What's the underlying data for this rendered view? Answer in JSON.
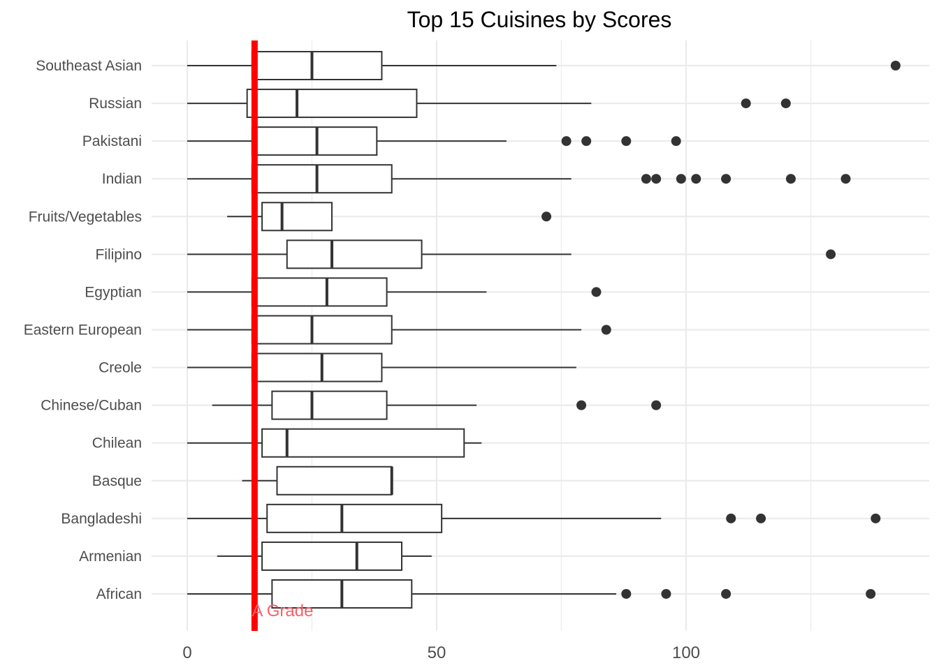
{
  "chart_data": {
    "type": "boxplot",
    "orientation": "horizontal",
    "title": "Top 15 Cuisines by Scores",
    "xlabel": "",
    "ylabel": "",
    "xlim": [
      0,
      150
    ],
    "x_ticks": [
      0,
      50,
      100
    ],
    "grid": true,
    "categories": [
      "Southeast Asian",
      "Russian",
      "Pakistani",
      "Indian",
      "Fruits/Vegetables",
      "Filipino",
      "Egyptian",
      "Eastern European",
      "Creole",
      "Chinese/Cuban",
      "Chilean",
      "Basque",
      "Bangladeshi",
      "Armenian",
      "African"
    ],
    "boxes": [
      {
        "category": "Southeast Asian",
        "whisker_low": 0,
        "q1": 13,
        "median": 25,
        "q3": 39,
        "whisker_high": 74,
        "outliers": [
          142
        ]
      },
      {
        "category": "Russian",
        "whisker_low": 0,
        "q1": 12,
        "median": 22,
        "q3": 46,
        "whisker_high": 81,
        "outliers": [
          112,
          120
        ]
      },
      {
        "category": "Pakistani",
        "whisker_low": 0,
        "q1": 13,
        "median": 26,
        "q3": 38,
        "whisker_high": 64,
        "outliers": [
          76,
          80,
          88,
          98
        ]
      },
      {
        "category": "Indian",
        "whisker_low": 0,
        "q1": 13,
        "median": 26,
        "q3": 41,
        "whisker_high": 77,
        "outliers": [
          92,
          94,
          99,
          102,
          108,
          121,
          132
        ]
      },
      {
        "category": "Fruits/Vegetables",
        "whisker_low": 8,
        "q1": 15,
        "median": 19,
        "q3": 29,
        "whisker_high": 29,
        "outliers": [
          72
        ]
      },
      {
        "category": "Filipino",
        "whisker_low": 0,
        "q1": 20,
        "median": 29,
        "q3": 47,
        "whisker_high": 77,
        "outliers": [
          129
        ]
      },
      {
        "category": "Egyptian",
        "whisker_low": 0,
        "q1": 13,
        "median": 28,
        "q3": 40,
        "whisker_high": 60,
        "outliers": [
          82
        ]
      },
      {
        "category": "Eastern European",
        "whisker_low": 0,
        "q1": 13,
        "median": 25,
        "q3": 41,
        "whisker_high": 79,
        "outliers": [
          84
        ]
      },
      {
        "category": "Creole",
        "whisker_low": 0,
        "q1": 13,
        "median": 27,
        "q3": 39,
        "whisker_high": 78,
        "outliers": []
      },
      {
        "category": "Chinese/Cuban",
        "whisker_low": 5,
        "q1": 17,
        "median": 25,
        "q3": 40,
        "whisker_high": 58,
        "outliers": [
          79,
          94
        ]
      },
      {
        "category": "Chilean",
        "whisker_low": 0,
        "q1": 15,
        "median": 20,
        "q3": 55.5,
        "whisker_high": 59,
        "outliers": []
      },
      {
        "category": "Basque",
        "whisker_low": 11,
        "q1": 18,
        "median": 41,
        "q3": 41,
        "whisker_high": 41,
        "outliers": []
      },
      {
        "category": "Bangladeshi",
        "whisker_low": 0,
        "q1": 16,
        "median": 31,
        "q3": 51,
        "whisker_high": 95,
        "outliers": [
          109,
          115,
          138
        ]
      },
      {
        "category": "Armenian",
        "whisker_low": 6,
        "q1": 15,
        "median": 34,
        "q3": 43,
        "whisker_high": 49,
        "outliers": []
      },
      {
        "category": "African",
        "whisker_low": 0,
        "q1": 17,
        "median": 31,
        "q3": 45,
        "whisker_high": 86,
        "outliers": [
          88,
          96,
          108,
          137
        ]
      }
    ],
    "reference_line": {
      "value": 13.5,
      "label": "A Grade",
      "color": "#ff0000",
      "label_color": "#f8616a"
    },
    "colors": {
      "box_stroke": "#333333",
      "outlier": "#333333",
      "grid": "#ebebeb",
      "tick_text": "#4d4d4d"
    }
  }
}
